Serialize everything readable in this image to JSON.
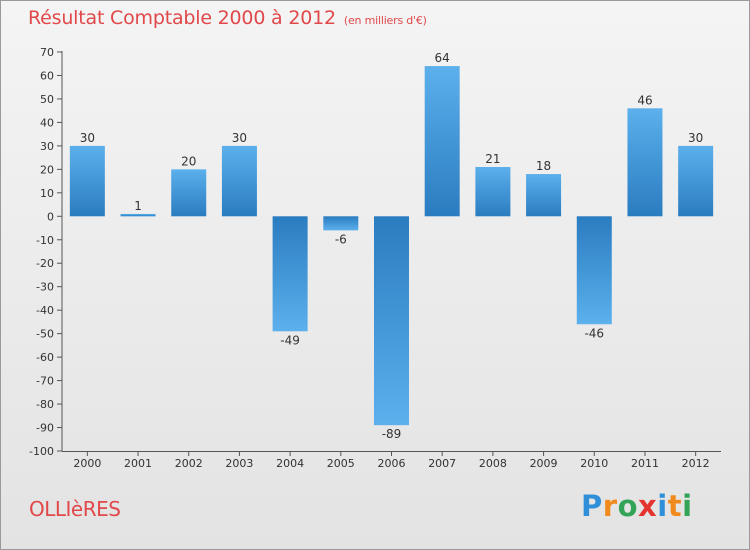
{
  "header": {
    "title": "Résultat Comptable 2000 à 2012",
    "subtitle": "(en milliers d'€)"
  },
  "footer": {
    "commune": "OLLIèRES",
    "brand": "Proxiti",
    "brand_letters": [
      {
        "char": "P",
        "color": "#2f8fd8"
      },
      {
        "char": "r",
        "color": "#f08a1c"
      },
      {
        "char": "o",
        "color": "#33a457"
      },
      {
        "char": "x",
        "color": "#e3342f"
      },
      {
        "char": "i",
        "color": "#2f8fd8"
      },
      {
        "char": "t",
        "color": "#f08a1c"
      },
      {
        "char": "i",
        "color": "#33a457"
      }
    ]
  },
  "colors": {
    "title": "#e0484a",
    "bar_dark": "#2a7cc0",
    "bar_light": "#5cb0ec"
  },
  "chart_data": {
    "type": "bar",
    "title": "Résultat Comptable 2000 à 2012",
    "subtitle": "(en milliers d'€)",
    "xlabel": "",
    "ylabel": "",
    "categories": [
      "2000",
      "2001",
      "2002",
      "2003",
      "2004",
      "2005",
      "2006",
      "2007",
      "2008",
      "2009",
      "2010",
      "2011",
      "2012"
    ],
    "values": [
      30,
      1,
      20,
      30,
      -49,
      -6,
      -89,
      64,
      21,
      18,
      -46,
      46,
      30
    ],
    "ylim": [
      -100,
      70
    ],
    "ytick_step": 10,
    "grid": false
  }
}
